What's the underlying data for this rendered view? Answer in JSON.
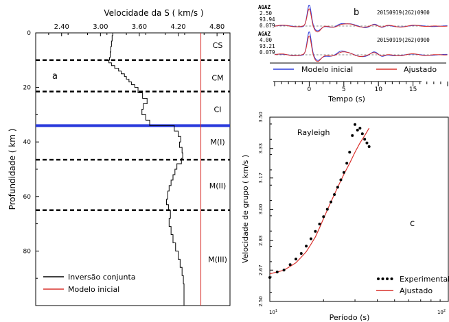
{
  "chart_data": [
    {
      "panel": "a",
      "type": "line",
      "title": "",
      "xlabel": "Velocidade da S ( km/s )",
      "ylabel": "Profundidade ( km )",
      "xlim": [
        2.0,
        5.0
      ],
      "ylim": [
        0,
        100
      ],
      "y_inverted": true,
      "xticks": [
        "2.40",
        "3.00",
        "3.60",
        "4.20",
        "4.80"
      ],
      "yticks": [
        "0",
        "20",
        "40",
        "60",
        "80"
      ],
      "layers": [
        {
          "label": "CS",
          "depth": 4.5
        },
        {
          "label": "CM",
          "depth": 16.5
        },
        {
          "label": "CI",
          "depth": 28
        },
        {
          "label": "M(I)",
          "depth": 40
        },
        {
          "label": "M(II)",
          "depth": 56
        },
        {
          "label": "M(III)",
          "depth": 83
        }
      ],
      "boundaries": [
        {
          "depth": 10,
          "style": "dashed",
          "color": "#000000"
        },
        {
          "depth": 21.5,
          "style": "dashed",
          "color": "#000000"
        },
        {
          "depth": 34,
          "style": "solid",
          "color": "#2b3bdc"
        },
        {
          "depth": 46.5,
          "style": "dashed",
          "color": "#000000"
        },
        {
          "depth": 65,
          "style": "dashed",
          "color": "#000000"
        }
      ],
      "series": [
        {
          "name": "Inversão conjunta",
          "color": "#000000",
          "steps": [
            [
              0,
              3.19
            ],
            [
              1,
              3.18
            ],
            [
              3,
              3.17
            ],
            [
              5,
              3.16
            ],
            [
              7,
              3.15
            ],
            [
              9,
              3.14
            ],
            [
              10,
              3.13
            ],
            [
              11,
              3.17
            ],
            [
              12,
              3.22
            ],
            [
              13,
              3.28
            ],
            [
              14,
              3.32
            ],
            [
              15,
              3.37
            ],
            [
              16,
              3.4
            ],
            [
              17,
              3.44
            ],
            [
              18,
              3.48
            ],
            [
              19,
              3.53
            ],
            [
              20,
              3.58
            ],
            [
              22,
              3.65
            ],
            [
              24,
              3.72
            ],
            [
              26,
              3.66
            ],
            [
              28,
              3.64
            ],
            [
              30,
              3.7
            ],
            [
              32,
              3.76
            ],
            [
              34,
              4.14
            ],
            [
              36,
              4.2
            ],
            [
              38,
              4.24
            ],
            [
              40,
              4.22
            ],
            [
              42,
              4.26
            ],
            [
              44,
              4.27
            ],
            [
              46,
              4.25
            ],
            [
              48,
              4.18
            ],
            [
              50,
              4.15
            ],
            [
              52,
              4.12
            ],
            [
              54,
              4.09
            ],
            [
              56,
              4.06
            ],
            [
              58,
              4.04
            ],
            [
              61,
              4.02
            ],
            [
              63,
              4.05
            ],
            [
              65,
              4.08
            ],
            [
              68,
              4.06
            ],
            [
              71,
              4.09
            ],
            [
              74,
              4.12
            ],
            [
              77,
              4.16
            ],
            [
              80,
              4.2
            ],
            [
              83,
              4.23
            ],
            [
              86,
              4.26
            ],
            [
              89,
              4.28
            ],
            [
              92,
              4.29
            ],
            [
              100,
              4.29
            ]
          ]
        },
        {
          "name": "Modelo inicial",
          "color": "#d9302c",
          "value": 4.55
        }
      ]
    },
    {
      "panel": "b",
      "type": "line",
      "xlabel": "Tempo (s)",
      "xlim": [
        -5,
        20
      ],
      "xticks": [
        "0",
        "5",
        "10",
        "15"
      ],
      "traces": [
        {
          "lines": [
            "AGAZ",
            "2.50",
            "93.94",
            "0.079"
          ],
          "event": "20150919(262)0900"
        },
        {
          "lines": [
            "AGAZ",
            "4.00",
            "93.21",
            "0.079"
          ],
          "event": "20150919(262)0900"
        }
      ],
      "series": [
        {
          "name": "Modelo inicial",
          "color": "#2b3bdc"
        },
        {
          "name": "Ajustado",
          "color": "#d9302c"
        }
      ]
    },
    {
      "panel": "c",
      "type": "scatter",
      "annotation": "Rayleigh",
      "xlabel": "Período (s)",
      "ylabel": "Velocidade de grupo ( km/s )",
      "x_scale": "log",
      "xlim": [
        10,
        100
      ],
      "ylim": [
        2.5,
        3.5
      ],
      "xticks": [
        {
          "base": "10",
          "exp": "1"
        },
        {
          "base": "10",
          "exp": "2"
        }
      ],
      "yticks": [
        "3.50",
        "3.33",
        "3.17",
        "3.00",
        "2.83",
        "2.67",
        "2.50"
      ],
      "series": [
        {
          "name": "Experimental",
          "color": "#000000",
          "x": [
            10,
            11,
            12,
            13,
            14,
            15,
            16,
            17,
            18,
            19,
            20,
            21,
            22,
            23,
            24,
            25,
            26,
            27,
            28,
            29,
            30,
            31,
            32,
            33,
            34,
            35,
            36
          ],
          "y": [
            2.63,
            2.66,
            2.67,
            2.7,
            2.73,
            2.76,
            2.8,
            2.84,
            2.88,
            2.92,
            2.96,
            3.0,
            3.04,
            3.08,
            3.12,
            3.16,
            3.2,
            3.25,
            3.31,
            3.4,
            3.46,
            3.43,
            3.44,
            3.41,
            3.38,
            3.36,
            3.34
          ]
        },
        {
          "name": "Ajustado",
          "color": "#d9302c",
          "x": [
            10,
            11,
            12,
            13,
            14,
            15,
            16,
            17,
            18,
            19,
            20,
            22,
            24,
            26,
            28,
            30,
            32,
            34,
            36
          ],
          "y": [
            2.65,
            2.66,
            2.67,
            2.69,
            2.71,
            2.74,
            2.77,
            2.81,
            2.85,
            2.9,
            2.95,
            3.04,
            3.12,
            3.19,
            3.25,
            3.31,
            3.36,
            3.4,
            3.44
          ]
        }
      ]
    }
  ]
}
